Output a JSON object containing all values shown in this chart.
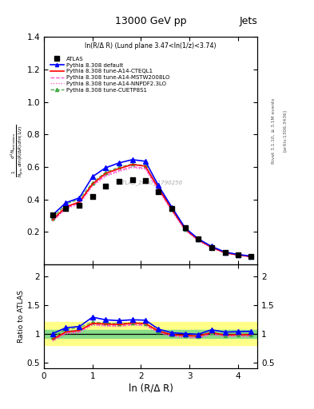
{
  "title_top": "13000 GeV pp",
  "title_right": "Jets",
  "panel_label": "ln(R/Δ R) (Lund plane 3.47<ln(1/z)<3.74)",
  "watermark": "ATLAS_2020_I1790256",
  "ylabel_main": "$\\frac{1}{N_{\\mathrm{jets}}}\\frac{d^2 N_{\\mathrm{emissions}}}{d\\ln(R/\\Delta R)\\,d\\ln(1/z)}$",
  "ylabel_ratio": "Ratio to ATLAS",
  "xlabel": "ln (R/Δ R)",
  "right_label": "Rivet 3.1.10, ≥ 3.1M events",
  "right_label2": "[arXiv:1306.3436]",
  "xlim": [
    0,
    4.4
  ],
  "ylim_main": [
    0.0,
    1.4
  ],
  "ylim_ratio": [
    0.4,
    2.2
  ],
  "x_data": [
    0.18,
    0.45,
    0.73,
    1.0,
    1.27,
    1.55,
    1.82,
    2.09,
    2.36,
    2.64,
    2.91,
    3.18,
    3.45,
    3.73,
    4.0,
    4.27
  ],
  "atlas_y": [
    0.305,
    0.345,
    0.365,
    0.42,
    0.48,
    0.51,
    0.52,
    0.515,
    0.45,
    0.345,
    0.225,
    0.16,
    0.105,
    0.075,
    0.06,
    0.05
  ],
  "default_y": [
    0.305,
    0.38,
    0.41,
    0.54,
    0.595,
    0.625,
    0.645,
    0.635,
    0.485,
    0.35,
    0.225,
    0.158,
    0.112,
    0.077,
    0.062,
    0.052
  ],
  "cteql1_y": [
    0.275,
    0.355,
    0.385,
    0.495,
    0.56,
    0.59,
    0.615,
    0.605,
    0.47,
    0.338,
    0.218,
    0.153,
    0.107,
    0.073,
    0.059,
    0.049
  ],
  "mstw_y": [
    0.268,
    0.348,
    0.378,
    0.488,
    0.548,
    0.578,
    0.602,
    0.592,
    0.462,
    0.332,
    0.212,
    0.149,
    0.105,
    0.072,
    0.058,
    0.048
  ],
  "nnpdf_y": [
    0.265,
    0.342,
    0.372,
    0.482,
    0.542,
    0.572,
    0.596,
    0.586,
    0.456,
    0.327,
    0.209,
    0.147,
    0.103,
    0.071,
    0.057,
    0.047
  ],
  "cuetp_y": [
    0.285,
    0.372,
    0.402,
    0.504,
    0.568,
    0.598,
    0.618,
    0.608,
    0.468,
    0.338,
    0.218,
    0.153,
    0.107,
    0.073,
    0.059,
    0.049
  ],
  "atlas_color": "#000000",
  "default_color": "#0000ff",
  "cteql1_color": "#ff0000",
  "mstw_color": "#ff44cc",
  "nnpdf_color": "#ff44cc",
  "cuetp_color": "#44aa44",
  "green_band_xlo": 0.0,
  "green_band_xhi": 4.4,
  "green_band_ylo": 0.93,
  "green_band_yhi": 1.07,
  "yellow_band_ylo": 0.8,
  "yellow_band_yhi": 1.2,
  "legend_entries": [
    "ATLAS",
    "Pythia 8.308 default",
    "Pythia 8.308 tune-A14-CTEQL1",
    "Pythia 8.308 tune-A14-MSTW2008LO",
    "Pythia 8.308 tune-A14-NNPDF2.3LO",
    "Pythia 8.308 tune-CUETP8S1"
  ],
  "yticks_main": [
    0.2,
    0.4,
    0.6,
    0.8,
    1.0,
    1.2,
    1.4
  ],
  "yticks_ratio": [
    0.5,
    1.0,
    1.5,
    2.0
  ],
  "xticks": [
    0,
    1,
    2,
    3,
    4
  ]
}
